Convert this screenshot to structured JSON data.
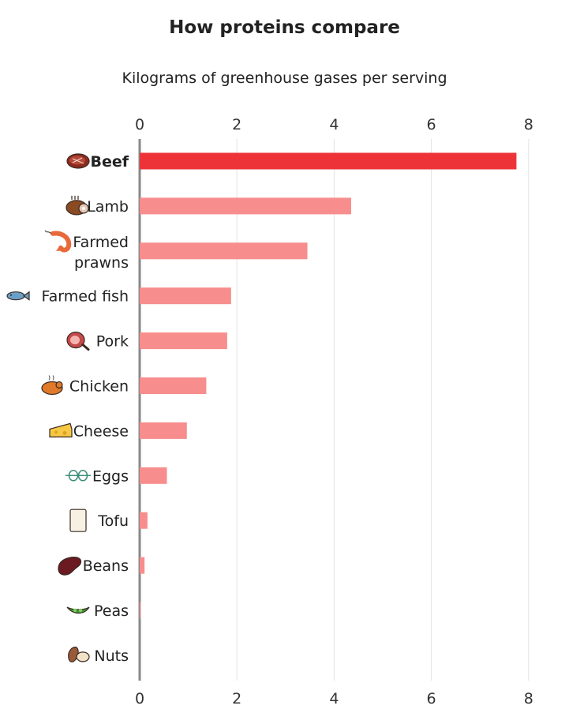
{
  "title": "How proteins compare",
  "subtitle": "Kilograms of greenhouse gases per serving",
  "colors": {
    "highlight": "#ee3338",
    "bar": "#f78d8d",
    "axis": "#888888",
    "grid": "#e3e3e3"
  },
  "chart_data": {
    "type": "bar",
    "orientation": "horizontal",
    "title": "How proteins compare",
    "subtitle": "Kilograms of greenhouse gases per serving",
    "xlim": [
      0,
      8
    ],
    "xticks": [
      "0",
      "2",
      "4",
      "6",
      "8"
    ],
    "grid": true,
    "categories": [
      {
        "label": [
          "Beef"
        ],
        "value": 7.75,
        "highlight": true,
        "icon": "steak-icon"
      },
      {
        "label": [
          "Lamb"
        ],
        "value": 4.35,
        "highlight": false,
        "icon": "lamb-roast-icon"
      },
      {
        "label": [
          "Farmed",
          "prawns"
        ],
        "value": 3.45,
        "highlight": false,
        "icon": "prawn-icon"
      },
      {
        "label": [
          "Farmed fish"
        ],
        "value": 1.88,
        "highlight": false,
        "icon": "fish-icon"
      },
      {
        "label": [
          "Pork"
        ],
        "value": 1.8,
        "highlight": false,
        "icon": "ham-icon"
      },
      {
        "label": [
          "Chicken"
        ],
        "value": 1.37,
        "highlight": false,
        "icon": "roast-chicken-icon"
      },
      {
        "label": [
          "Cheese"
        ],
        "value": 0.97,
        "highlight": false,
        "icon": "cheese-icon"
      },
      {
        "label": [
          "Eggs"
        ],
        "value": 0.56,
        "highlight": false,
        "icon": "eggs-icon"
      },
      {
        "label": [
          "Tofu"
        ],
        "value": 0.16,
        "highlight": false,
        "icon": "tofu-icon"
      },
      {
        "label": [
          "Beans"
        ],
        "value": 0.1,
        "highlight": false,
        "icon": "bean-icon"
      },
      {
        "label": [
          "Peas"
        ],
        "value": 0.02,
        "highlight": false,
        "icon": "pea-pod-icon"
      },
      {
        "label": [
          "Nuts"
        ],
        "value": 0.0,
        "highlight": false,
        "icon": "nuts-icon"
      }
    ]
  }
}
